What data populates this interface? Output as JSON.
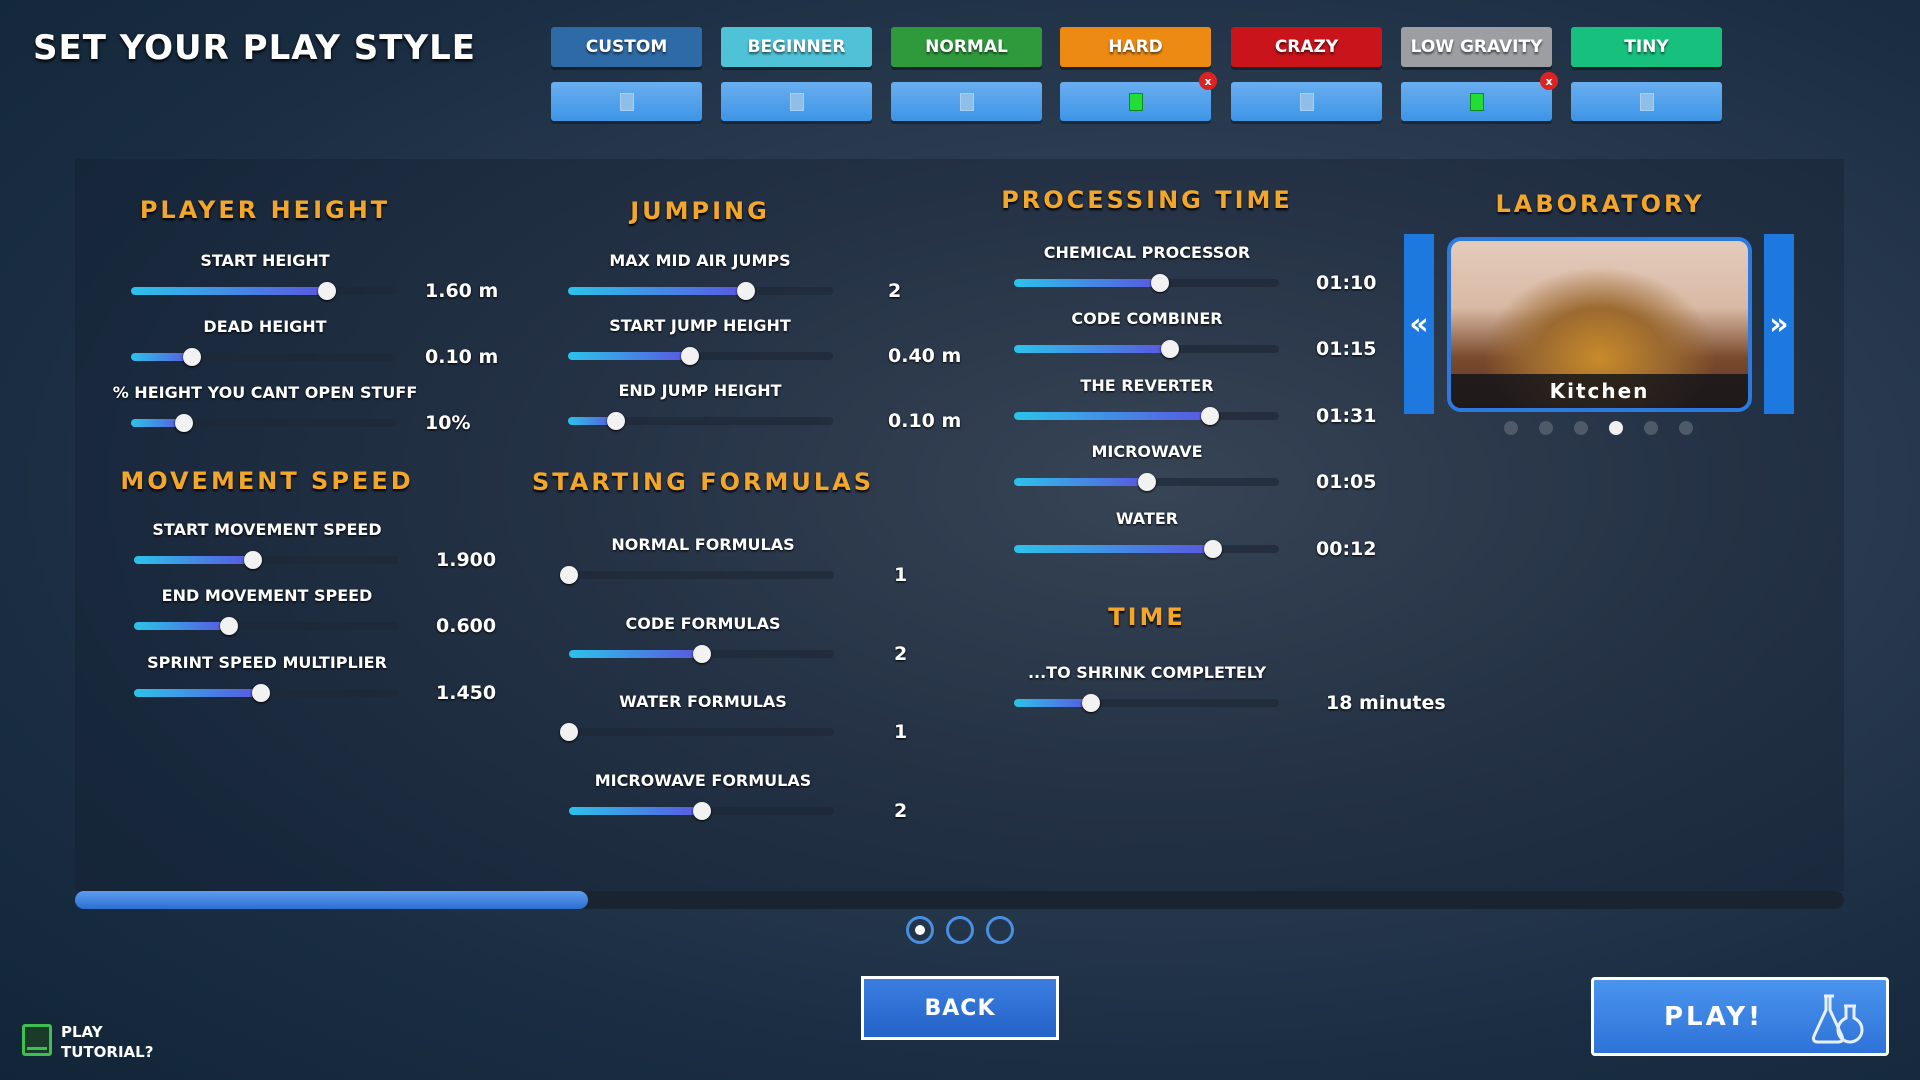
{
  "title": "SET YOUR PLAY STYLE",
  "presets": [
    {
      "label": "CUSTOM",
      "color": "#2e6aa6",
      "saved": false
    },
    {
      "label": "BEGINNER",
      "color": "#4fc2d8",
      "saved": false
    },
    {
      "label": "NORMAL",
      "color": "#2f9a3c",
      "saved": false
    },
    {
      "label": "HARD",
      "color": "#ec8a14",
      "saved": true
    },
    {
      "label": "CRAZY",
      "color": "#c8141a",
      "saved": false
    },
    {
      "label": "LOW GRAVITY",
      "color": "#9c9ea2",
      "saved": true
    },
    {
      "label": "TINY",
      "color": "#18c07e",
      "saved": false
    }
  ],
  "delete_badge": "x",
  "sections": [
    {
      "title": "PLAYER HEIGHT",
      "rows": [
        {
          "label": "START HEIGHT",
          "value": "1.60 m",
          "fraction": 0.74
        },
        {
          "label": "DEAD HEIGHT",
          "value": "0.10 m",
          "fraction": 0.23
        },
        {
          "label": "% HEIGHT YOU CANT OPEN STUFF",
          "value": "10%",
          "fraction": 0.2
        }
      ]
    },
    {
      "title": "MOVEMENT SPEED",
      "rows": [
        {
          "label": "START MOVEMENT SPEED",
          "value": "1.900",
          "fraction": 0.45
        },
        {
          "label": "END MOVEMENT SPEED",
          "value": "0.600",
          "fraction": 0.36
        },
        {
          "label": "SPRINT SPEED MULTIPLIER",
          "value": "1.450",
          "fraction": 0.48
        }
      ]
    },
    {
      "title": "JUMPING",
      "rows": [
        {
          "label": "MAX MID AIR JUMPS",
          "value": "2",
          "fraction": 0.67
        },
        {
          "label": "START JUMP HEIGHT",
          "value": "0.40 m",
          "fraction": 0.46
        },
        {
          "label": "END JUMP HEIGHT",
          "value": "0.10 m",
          "fraction": 0.18
        }
      ]
    },
    {
      "title": "STARTING FORMULAS",
      "rows": [
        {
          "label": "NORMAL FORMULAS",
          "value": "1",
          "fraction": 0
        },
        {
          "label": "CODE FORMULAS",
          "value": "2",
          "fraction": 0.5
        },
        {
          "label": "WATER FORMULAS",
          "value": "1",
          "fraction": 0
        },
        {
          "label": "MICROWAVE FORMULAS",
          "value": "2",
          "fraction": 0.5
        }
      ]
    },
    {
      "title": "PROCESSING TIME",
      "rows": [
        {
          "label": "CHEMICAL PROCESSOR",
          "value": "01:10",
          "fraction": 0.55
        },
        {
          "label": "CODE COMBINER",
          "value": "01:15",
          "fraction": 0.59
        },
        {
          "label": "THE REVERTER",
          "value": "01:31",
          "fraction": 0.74
        },
        {
          "label": "MICROWAVE",
          "value": "01:05",
          "fraction": 0.5
        },
        {
          "label": "WATER",
          "value": "00:12",
          "fraction": 0.75
        }
      ]
    },
    {
      "title": "TIME",
      "rows": [
        {
          "label": "...TO SHRINK COMPLETELY",
          "value": "18 minutes",
          "fraction": 0.29
        }
      ]
    }
  ],
  "laboratory": {
    "title": "LABORATORY",
    "selected": "Kitchen",
    "count": 6,
    "selected_index": 3
  },
  "pages": {
    "count": 3,
    "current": 0,
    "scroll_fraction": 0.29
  },
  "back_label": "BACK",
  "play_label": "PLAY!",
  "tutorial": {
    "line1": "PLAY",
    "line2": "TUTORIAL?",
    "checked": false
  }
}
